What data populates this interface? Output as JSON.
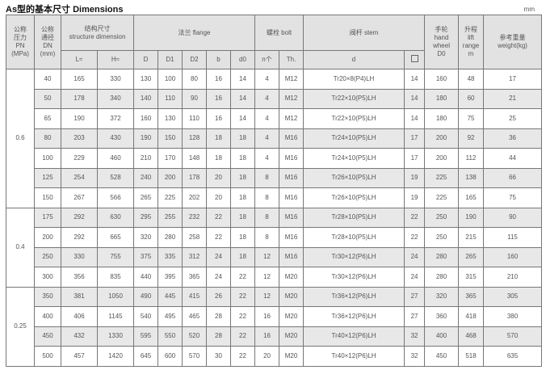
{
  "title": "As型的基本尺寸  Dimensions",
  "unit": "mm",
  "headers": {
    "pn": [
      "公称",
      "压力",
      "PN",
      "(MPa)"
    ],
    "dn": [
      "公称",
      "通径",
      "DN",
      "(mm)"
    ],
    "structure": [
      "结构尺寸",
      "structure dimension"
    ],
    "flange": "法兰 flange",
    "bolt": "螺栓 bolt",
    "stem": "阀杆 stem",
    "handwheel": [
      "手轮",
      "hand",
      "wheel",
      "D0"
    ],
    "lift": [
      "升程",
      "lift",
      "range",
      "m"
    ],
    "weight": [
      "参考重量",
      "weight(kg)"
    ],
    "sub": [
      "L≈",
      "H≈",
      "D",
      "D1",
      "D2",
      "b",
      "d0",
      "n个",
      "Th.",
      "d"
    ],
    "square_icon": "square-icon"
  },
  "groups": [
    {
      "pn": "0.6",
      "rows": [
        [
          "40",
          "165",
          "330",
          "130",
          "100",
          "80",
          "16",
          "14",
          "4",
          "M12",
          "Tr20×8(P4)LH",
          "14",
          "160",
          "48",
          "17"
        ],
        [
          "50",
          "178",
          "340",
          "140",
          "110",
          "90",
          "16",
          "14",
          "4",
          "M12",
          "Tr22×10(P5)LH",
          "14",
          "180",
          "60",
          "21"
        ],
        [
          "65",
          "190",
          "372",
          "160",
          "130",
          "110",
          "16",
          "14",
          "4",
          "M12",
          "Tr22×10(P5)LH",
          "14",
          "180",
          "75",
          "25"
        ],
        [
          "80",
          "203",
          "430",
          "190",
          "150",
          "128",
          "18",
          "18",
          "4",
          "M16",
          "Tr24×10(P5)LH",
          "17",
          "200",
          "92",
          "36"
        ],
        [
          "100",
          "229",
          "460",
          "210",
          "170",
          "148",
          "18",
          "18",
          "4",
          "M16",
          "Tr24×10(P5)LH",
          "17",
          "200",
          "112",
          "44"
        ],
        [
          "125",
          "254",
          "528",
          "240",
          "200",
          "178",
          "20",
          "18",
          "8",
          "M16",
          "Tr26×10(P5)LH",
          "19",
          "225",
          "138",
          "66"
        ],
        [
          "150",
          "267",
          "566",
          "265",
          "225",
          "202",
          "20",
          "18",
          "8",
          "M16",
          "Tr26×10(P5)LH",
          "19",
          "225",
          "165",
          "75"
        ]
      ]
    },
    {
      "pn": "0.4",
      "rows": [
        [
          "175",
          "292",
          "630",
          "295",
          "255",
          "232",
          "22",
          "18",
          "8",
          "M16",
          "Tr28×10(P5)LH",
          "22",
          "250",
          "190",
          "90"
        ],
        [
          "200",
          "292",
          "665",
          "320",
          "280",
          "258",
          "22",
          "18",
          "8",
          "M16",
          "Tr28×10(P5)LH",
          "22",
          "250",
          "215",
          "115"
        ],
        [
          "250",
          "330",
          "755",
          "375",
          "335",
          "312",
          "24",
          "18",
          "12",
          "M16",
          "Tr30×12(P6)LH",
          "24",
          "280",
          "265",
          "160"
        ],
        [
          "300",
          "356",
          "835",
          "440",
          "395",
          "365",
          "24",
          "22",
          "12",
          "M20",
          "Tr30×12(P6)LH",
          "24",
          "280",
          "315",
          "210"
        ]
      ]
    },
    {
      "pn": "0.25",
      "rows": [
        [
          "350",
          "381",
          "1050",
          "490",
          "445",
          "415",
          "26",
          "22",
          "12",
          "M20",
          "Tr36×12(P6)LH",
          "27",
          "320",
          "365",
          "305"
        ],
        [
          "400",
          "406",
          "1145",
          "540",
          "495",
          "465",
          "28",
          "22",
          "16",
          "M20",
          "Tr36×12(P6)LH",
          "27",
          "360",
          "418",
          "380"
        ],
        [
          "450",
          "432",
          "1330",
          "595",
          "550",
          "520",
          "28",
          "22",
          "16",
          "M20",
          "Tr40×12(P6)LH",
          "32",
          "400",
          "468",
          "570"
        ],
        [
          "500",
          "457",
          "1420",
          "645",
          "600",
          "570",
          "30",
          "22",
          "20",
          "M20",
          "Tr40×12(P6)LH",
          "32",
          "450",
          "518",
          "635"
        ]
      ]
    }
  ]
}
